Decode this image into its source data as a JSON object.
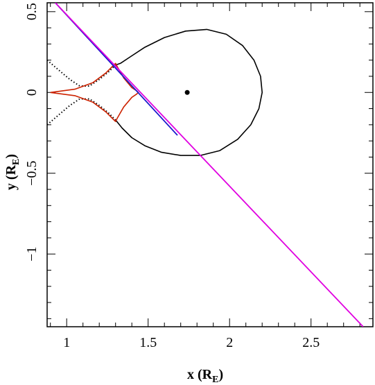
{
  "chart_data": {
    "type": "line",
    "xlabel": "x (R",
    "xlabel_sub": "E",
    "xlabel_close": ")",
    "ylabel": "y (R",
    "ylabel_sub": "E",
    "ylabel_close": ")",
    "xlim": [
      0.88,
      2.88
    ],
    "ylim": [
      -1.45,
      0.555
    ],
    "x_ticks": [
      1,
      1.5,
      2,
      2.5
    ],
    "x_tick_labels": [
      "1",
      "1.5",
      "2",
      "2.5"
    ],
    "y_ticks": [
      0.5,
      0,
      -0.5,
      -1
    ],
    "y_tick_labels": [
      "0.5",
      "0",
      "−0.5",
      "−1"
    ],
    "grid": false,
    "point": {
      "x": 1.74,
      "y": 0.0
    },
    "lens_loop": {
      "x": [
        1.3,
        1.34,
        1.4,
        1.48,
        1.58,
        1.7,
        1.82,
        1.94,
        2.05,
        2.13,
        2.18,
        2.2,
        2.19,
        2.15,
        2.08,
        1.98,
        1.86,
        1.73,
        1.6,
        1.48,
        1.39,
        1.33,
        1.3
      ],
      "y": [
        -0.17,
        -0.22,
        -0.28,
        -0.33,
        -0.37,
        -0.39,
        -0.39,
        -0.36,
        -0.29,
        -0.2,
        -0.1,
        0.0,
        0.1,
        0.2,
        0.29,
        0.36,
        0.39,
        0.38,
        0.34,
        0.28,
        0.22,
        0.18,
        0.17
      ]
    },
    "caustic": {
      "x": [
        0.9,
        1.05,
        1.16,
        1.24,
        1.28,
        1.3,
        1.31,
        1.35,
        1.4,
        1.43,
        1.44,
        1.43,
        1.4,
        1.35,
        1.31,
        1.3,
        1.28,
        1.24,
        1.16,
        1.05,
        0.9
      ],
      "y": [
        0.0,
        0.02,
        0.06,
        0.12,
        0.16,
        0.18,
        0.16,
        0.09,
        0.03,
        0.01,
        0.0,
        -0.01,
        -0.03,
        -0.09,
        -0.16,
        -0.18,
        -0.16,
        -0.12,
        -0.06,
        -0.02,
        0.0
      ]
    },
    "critical_dotted_upper": {
      "x": [
        0.88,
        0.95,
        1.02,
        1.08,
        1.14,
        1.2,
        1.26,
        1.3
      ],
      "y": [
        0.2,
        0.14,
        0.08,
        0.04,
        0.04,
        0.08,
        0.13,
        0.17
      ]
    },
    "critical_dotted_lower": {
      "x": [
        0.88,
        0.95,
        1.02,
        1.08,
        1.14,
        1.2,
        1.26,
        1.3
      ],
      "y": [
        -0.2,
        -0.14,
        -0.08,
        -0.04,
        -0.04,
        -0.08,
        -0.13,
        -0.17
      ]
    },
    "series": [
      {
        "x": [
          0.93,
          1.68
        ],
        "y": [
          0.555,
          -0.265
        ],
        "color": "#1a1acc"
      },
      {
        "x": [
          0.93,
          2.82
        ],
        "y": [
          0.555,
          -1.45
        ],
        "color": "#e000e0"
      }
    ],
    "colors": {
      "caustic": "#cc2200",
      "curve": "#000000",
      "blue": "#1a1acc",
      "magenta": "#e000e0"
    }
  }
}
